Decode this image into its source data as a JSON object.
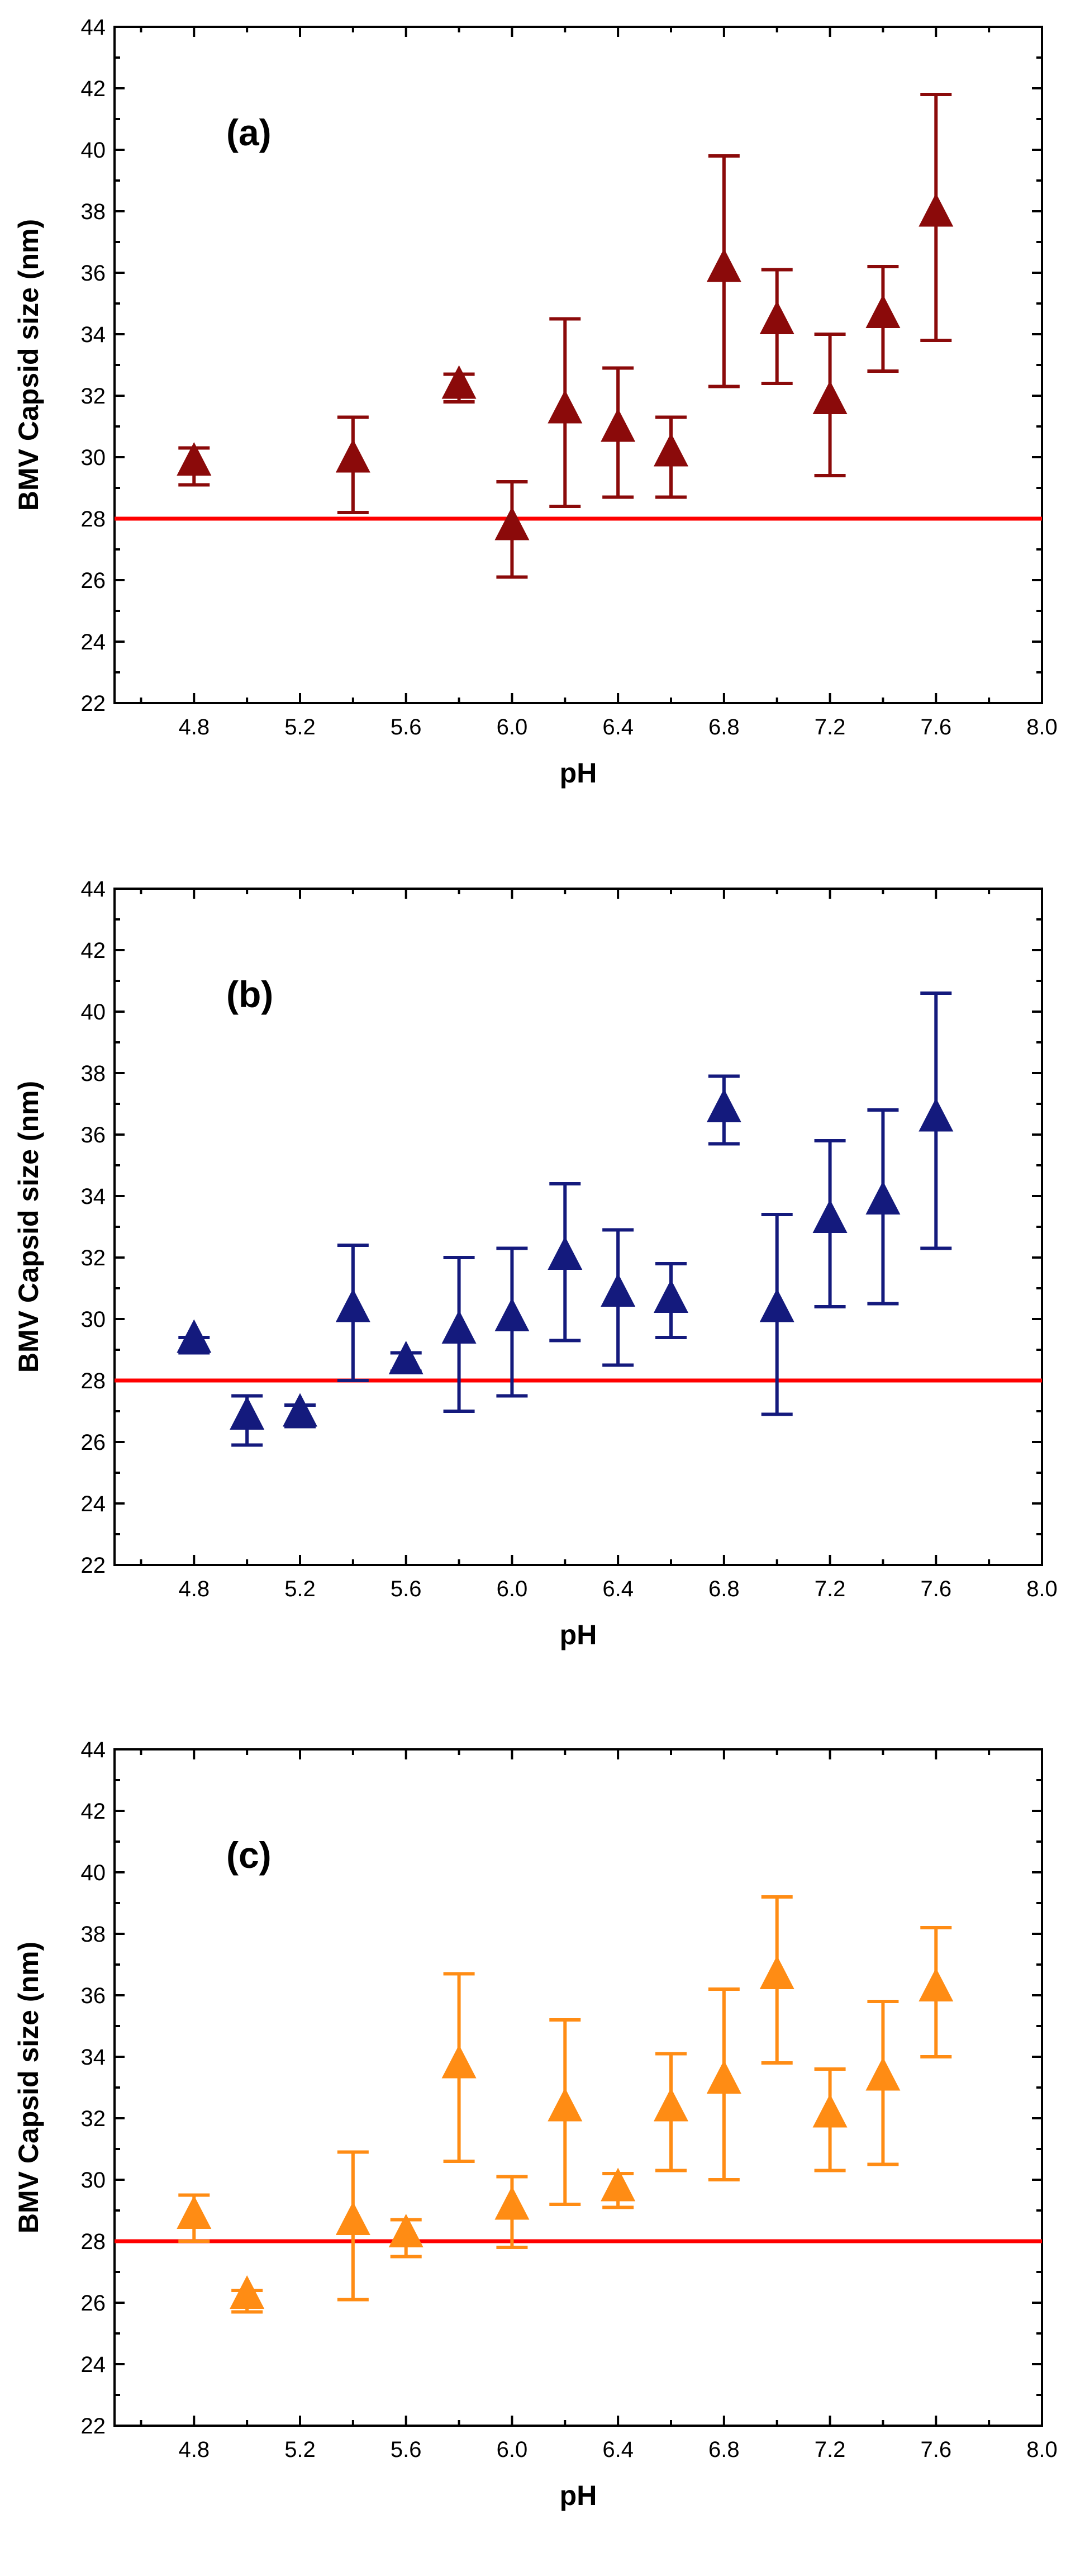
{
  "chart_data": [
    {
      "type": "scatter",
      "title": "",
      "panel_label": "(a)",
      "xlabel": "pH",
      "ylabel": "BMV Capsid size (nm)",
      "xlim": [
        4.5,
        8.0
      ],
      "ylim": [
        22,
        44
      ],
      "x_ticks": [
        4.8,
        5.2,
        5.6,
        6.0,
        6.4,
        6.8,
        7.2,
        7.6,
        8.0
      ],
      "x_tick_labels": [
        "4.8",
        "5.2",
        "5.6",
        "6.0",
        "6.4",
        "6.8",
        "7.2",
        "7.6",
        "8.0"
      ],
      "y_ticks": [
        22,
        24,
        26,
        28,
        30,
        32,
        34,
        36,
        38,
        40,
        42,
        44
      ],
      "y_tick_labels": [
        "22",
        "24",
        "26",
        "28",
        "30",
        "32",
        "34",
        "36",
        "38",
        "40",
        "42",
        "44"
      ],
      "grid": false,
      "reference_line": 28,
      "reference_color": "#ff0000",
      "marker": "triangle-up",
      "color": "#8b0a0a",
      "series": [
        {
          "name": "BMV capsid",
          "points": [
            {
              "x": 4.8,
              "y": 29.8,
              "err_low": 29.1,
              "err_high": 30.3
            },
            {
              "x": 5.4,
              "y": 29.9,
              "err_low": 28.2,
              "err_high": 31.3
            },
            {
              "x": 5.8,
              "y": 32.3,
              "err_low": 31.8,
              "err_high": 32.7
            },
            {
              "x": 6.0,
              "y": 27.7,
              "err_low": 26.1,
              "err_high": 29.2
            },
            {
              "x": 6.2,
              "y": 31.5,
              "err_low": 28.4,
              "err_high": 34.5
            },
            {
              "x": 6.4,
              "y": 30.9,
              "err_low": 28.7,
              "err_high": 32.9
            },
            {
              "x": 6.6,
              "y": 30.1,
              "err_low": 28.7,
              "err_high": 31.3
            },
            {
              "x": 6.8,
              "y": 36.1,
              "err_low": 32.3,
              "err_high": 39.8
            },
            {
              "x": 7.0,
              "y": 34.4,
              "err_low": 32.4,
              "err_high": 36.1
            },
            {
              "x": 7.2,
              "y": 31.8,
              "err_low": 29.4,
              "err_high": 34.0
            },
            {
              "x": 7.4,
              "y": 34.6,
              "err_low": 32.8,
              "err_high": 36.2
            },
            {
              "x": 7.6,
              "y": 37.9,
              "err_low": 33.8,
              "err_high": 41.8
            }
          ]
        }
      ]
    },
    {
      "type": "scatter",
      "title": "",
      "panel_label": "(b)",
      "xlabel": "pH",
      "ylabel": "BMV Capsid size (nm)",
      "xlim": [
        4.5,
        8.0
      ],
      "ylim": [
        22,
        44
      ],
      "x_ticks": [
        4.8,
        5.2,
        5.6,
        6.0,
        6.4,
        6.8,
        7.2,
        7.6,
        8.0
      ],
      "x_tick_labels": [
        "4.8",
        "5.2",
        "5.6",
        "6.0",
        "6.4",
        "6.8",
        "7.2",
        "7.6",
        "8.0"
      ],
      "y_ticks": [
        22,
        24,
        26,
        28,
        30,
        32,
        34,
        36,
        38,
        40,
        42,
        44
      ],
      "y_tick_labels": [
        "22",
        "24",
        "26",
        "28",
        "30",
        "32",
        "34",
        "36",
        "38",
        "40",
        "42",
        "44"
      ],
      "grid": false,
      "reference_line": 28,
      "reference_color": "#ff0000",
      "marker": "triangle-up",
      "color": "#141a7d",
      "series": [
        {
          "name": "BMV capsid",
          "points": [
            {
              "x": 4.8,
              "y": 29.3,
              "err_low": 28.9,
              "err_high": 29.4
            },
            {
              "x": 5.0,
              "y": 26.8,
              "err_low": 25.9,
              "err_high": 27.5
            },
            {
              "x": 5.2,
              "y": 26.9,
              "err_low": 26.5,
              "err_high": 27.2
            },
            {
              "x": 5.4,
              "y": 30.3,
              "err_low": 28.0,
              "err_high": 32.4
            },
            {
              "x": 5.6,
              "y": 28.6,
              "err_low": 28.3,
              "err_high": 28.9
            },
            {
              "x": 5.8,
              "y": 29.6,
              "err_low": 27.0,
              "err_high": 32.0
            },
            {
              "x": 6.0,
              "y": 30.0,
              "err_low": 27.5,
              "err_high": 32.3
            },
            {
              "x": 6.2,
              "y": 32.0,
              "err_low": 29.3,
              "err_high": 34.4
            },
            {
              "x": 6.4,
              "y": 30.8,
              "err_low": 28.5,
              "err_high": 32.9
            },
            {
              "x": 6.6,
              "y": 30.6,
              "err_low": 29.4,
              "err_high": 31.8
            },
            {
              "x": 6.8,
              "y": 36.8,
              "err_low": 35.7,
              "err_high": 37.9
            },
            {
              "x": 7.0,
              "y": 30.3,
              "err_low": 26.9,
              "err_high": 33.4
            },
            {
              "x": 7.2,
              "y": 33.2,
              "err_low": 30.4,
              "err_high": 35.8
            },
            {
              "x": 7.4,
              "y": 33.8,
              "err_low": 30.5,
              "err_high": 36.8
            },
            {
              "x": 7.6,
              "y": 36.5,
              "err_low": 32.3,
              "err_high": 40.6
            }
          ]
        }
      ]
    },
    {
      "type": "scatter",
      "title": "",
      "panel_label": "(c)",
      "xlabel": "pH",
      "ylabel": "BMV Capsid size (nm)",
      "xlim": [
        4.5,
        8.0
      ],
      "ylim": [
        22,
        44
      ],
      "x_ticks": [
        4.8,
        5.2,
        5.6,
        6.0,
        6.4,
        6.8,
        7.2,
        7.6,
        8.0
      ],
      "x_tick_labels": [
        "4.8",
        "5.2",
        "5.6",
        "6.0",
        "6.4",
        "6.8",
        "7.2",
        "7.6",
        "8.0"
      ],
      "y_ticks": [
        22,
        24,
        26,
        28,
        30,
        32,
        34,
        36,
        38,
        40,
        42,
        44
      ],
      "y_tick_labels": [
        "22",
        "24",
        "26",
        "28",
        "30",
        "32",
        "34",
        "36",
        "38",
        "40",
        "42",
        "44"
      ],
      "grid": false,
      "reference_line": 28,
      "reference_color": "#ff0000",
      "marker": "triangle-up",
      "color": "#ff8c14",
      "series": [
        {
          "name": "BMV capsid",
          "points": [
            {
              "x": 4.8,
              "y": 28.8,
              "err_low": 28.0,
              "err_high": 29.5
            },
            {
              "x": 5.0,
              "y": 26.2,
              "err_low": 25.7,
              "err_high": 26.4
            },
            {
              "x": 5.4,
              "y": 28.6,
              "err_low": 26.1,
              "err_high": 30.9
            },
            {
              "x": 5.6,
              "y": 28.2,
              "err_low": 27.5,
              "err_high": 28.7
            },
            {
              "x": 5.8,
              "y": 33.7,
              "err_low": 30.6,
              "err_high": 36.7
            },
            {
              "x": 6.0,
              "y": 29.1,
              "err_low": 27.8,
              "err_high": 30.1
            },
            {
              "x": 6.2,
              "y": 32.3,
              "err_low": 29.2,
              "err_high": 35.2
            },
            {
              "x": 6.4,
              "y": 29.7,
              "err_low": 29.1,
              "err_high": 30.2
            },
            {
              "x": 6.6,
              "y": 32.3,
              "err_low": 30.3,
              "err_high": 34.1
            },
            {
              "x": 6.8,
              "y": 33.2,
              "err_low": 30.0,
              "err_high": 36.2
            },
            {
              "x": 7.0,
              "y": 36.6,
              "err_low": 33.8,
              "err_high": 39.2
            },
            {
              "x": 7.2,
              "y": 32.1,
              "err_low": 30.3,
              "err_high": 33.6
            },
            {
              "x": 7.4,
              "y": 33.3,
              "err_low": 30.5,
              "err_high": 35.8
            },
            {
              "x": 7.6,
              "y": 36.2,
              "err_low": 34.0,
              "err_high": 38.2
            }
          ]
        }
      ]
    }
  ]
}
